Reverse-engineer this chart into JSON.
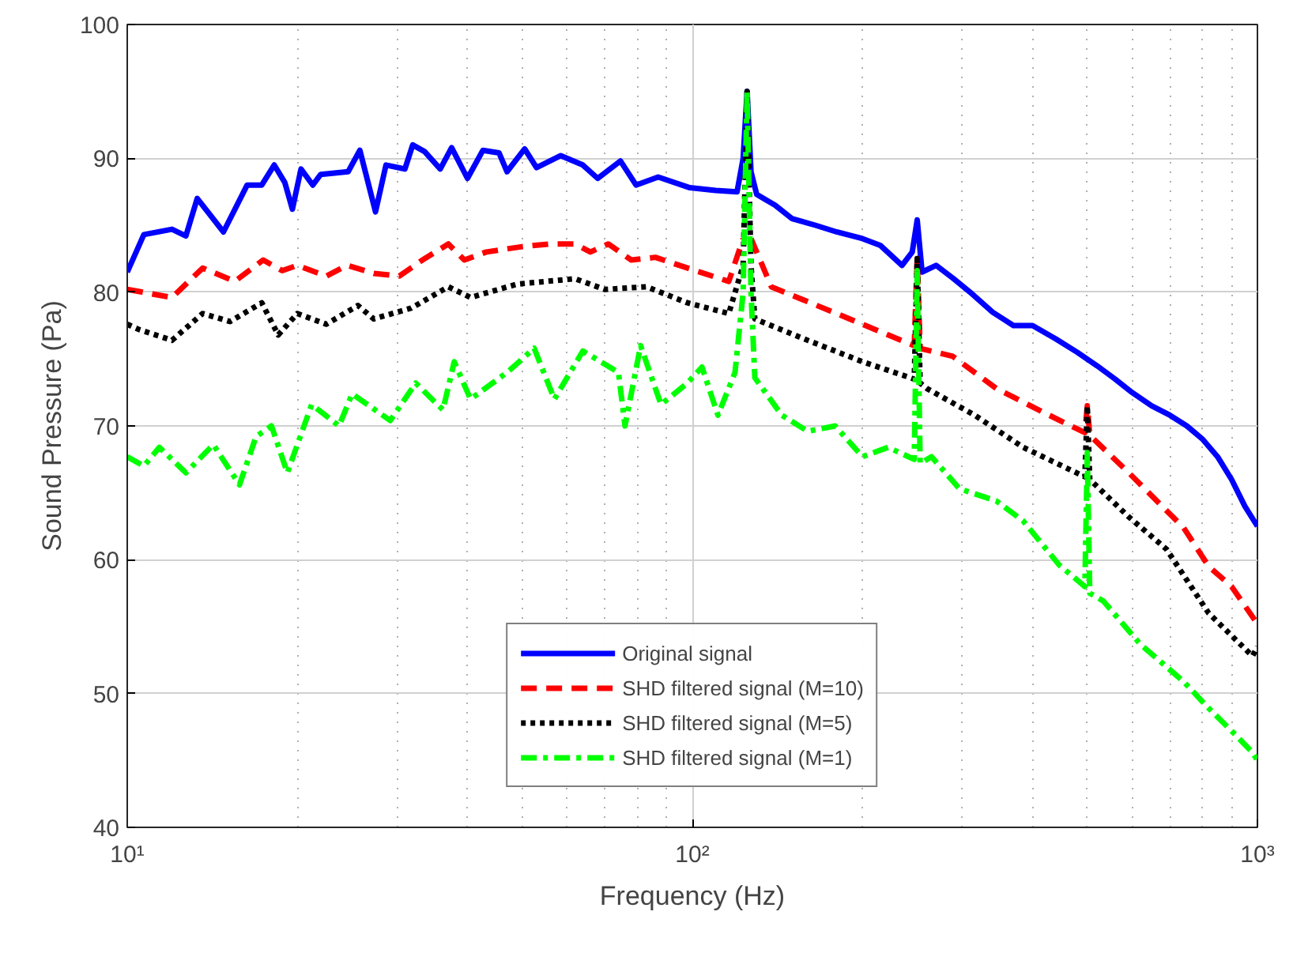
{
  "chart_data": {
    "type": "line",
    "xlabel": "Frequency (Hz)",
    "ylabel": "Sound Pressure (Pa)",
    "log": "x",
    "xlim": [
      10,
      1000
    ],
    "xticks": [
      {
        "value": 10,
        "label": "10¹"
      },
      {
        "value": 100,
        "label": "10²"
      },
      {
        "value": 1000,
        "label": "10³"
      }
    ],
    "ylim": [
      40,
      100
    ],
    "yticks": [
      40,
      50,
      60,
      70,
      80,
      90,
      100
    ],
    "grid": true,
    "legend": "bottom",
    "series": [
      {
        "name": "Original signal",
        "color": "#0000ff",
        "line_style": "solid",
        "x": [
          10,
          10.7,
          12,
          12.7,
          13.3,
          14.8,
          16.3,
          17.3,
          18.2,
          19,
          19.6,
          20.3,
          21.3,
          22,
          24.6,
          25.8,
          27.5,
          28.7,
          31,
          32,
          33.6,
          35.8,
          37.5,
          40,
          42.6,
          45.5,
          47,
          50.5,
          53,
          58.5,
          64,
          68,
          74.6,
          79.5,
          87,
          99,
          110,
          120,
          123,
          125,
          127,
          130,
          140,
          150,
          165,
          180,
          200,
          215,
          235,
          245,
          250,
          255,
          270,
          290,
          310,
          340,
          370,
          400,
          440,
          480,
          520,
          560,
          600,
          650,
          700,
          750,
          800,
          850,
          900,
          950,
          1000
        ],
        "values": [
          81.5,
          84.3,
          84.7,
          84.2,
          87,
          84.5,
          88,
          88,
          89.5,
          88.2,
          86.2,
          89.2,
          88,
          88.8,
          89,
          90.6,
          86,
          89.5,
          89.2,
          91,
          90.5,
          89.2,
          90.8,
          88.5,
          90.6,
          90.4,
          89,
          90.7,
          89.3,
          90.2,
          89.5,
          88.5,
          89.8,
          88,
          88.6,
          87.8,
          87.6,
          87.5,
          90,
          95,
          89,
          87.3,
          86.5,
          85.5,
          85,
          84.5,
          84,
          83.5,
          82,
          83,
          85.4,
          81.5,
          82,
          81,
          80,
          78.5,
          77.5,
          77.5,
          76.5,
          75.5,
          74.5,
          73.5,
          72.5,
          71.5,
          70.8,
          70,
          69,
          67.7,
          66,
          64,
          62.5
        ]
      },
      {
        "name": "SHD filtered signal (M=10)",
        "color": "#ff0000",
        "line_style": "dashed",
        "x": [
          10,
          12,
          13.6,
          15.5,
          17.4,
          18.8,
          20,
          22.5,
          24.5,
          27.3,
          30.3,
          33.3,
          37,
          39.5,
          43.2,
          50,
          56,
          62,
          66,
          71,
          78,
          86,
          98,
          116,
          123,
          125,
          127,
          138,
          180,
          222,
          247,
          250,
          253,
          289,
          345,
          428,
          495,
          500,
          505,
          592,
          740,
          820,
          900,
          1000
        ],
        "values": [
          80.2,
          79.6,
          81.8,
          80.8,
          82.4,
          81.6,
          82,
          81.2,
          82,
          81.4,
          81.2,
          82.4,
          83.6,
          82.4,
          83,
          83.4,
          83.6,
          83.6,
          83,
          83.6,
          82.4,
          82.6,
          81.8,
          80.8,
          84,
          null,
          84,
          80.4,
          78.4,
          76.8,
          76,
          82.5,
          75.8,
          75.2,
          72.8,
          70.8,
          69.5,
          71.5,
          69.3,
          66.5,
          62.4,
          59.5,
          58,
          55.2
        ]
      },
      {
        "name": "SHD filtered signal (M=5)",
        "color": "#000000",
        "line_style": "dotted",
        "x": [
          10,
          10.5,
          12,
          13.6,
          15.2,
          17.3,
          18.5,
          20,
          22.5,
          25.6,
          27.3,
          31.8,
          37,
          40.5,
          49,
          62,
          70,
          83,
          98,
          116,
          123,
          125,
          127,
          129,
          160,
          200,
          247,
          250,
          253,
          260,
          316,
          385,
          495,
          500,
          505,
          592,
          690,
          820,
          980,
          1000
        ],
        "values": [
          77.6,
          77.2,
          76.4,
          78.4,
          77.8,
          79.2,
          76.8,
          78.4,
          77.6,
          79,
          78,
          78.8,
          80.4,
          79.6,
          80.6,
          81,
          80.2,
          80.4,
          79.2,
          78.4,
          82,
          95,
          82,
          78,
          76.4,
          74.8,
          73.5,
          82.5,
          73.2,
          72.8,
          70.8,
          68.4,
          66.2,
          71.5,
          66,
          63.2,
          60.8,
          56,
          52.8,
          53.5
        ]
      },
      {
        "name": "SHD filtered signal (M=1)",
        "color": "#00ff00",
        "line_style": "dashdot",
        "x": [
          10,
          10.7,
          11.4,
          12.7,
          14.2,
          15.8,
          16.9,
          18,
          19.2,
          21.2,
          23.7,
          25,
          29.2,
          32.4,
          36.2,
          37.9,
          40.5,
          47,
          52.5,
          57,
          64,
          74,
          76,
          81,
          88,
          98,
          104,
          111,
          119,
          123,
          125,
          127,
          129,
          144,
          160,
          179,
          200,
          222,
          247,
          250,
          253,
          265,
          297,
          345,
          385,
          446,
          495,
          500,
          505,
          534,
          620,
          740,
          820,
          920,
          980,
          1000
        ],
        "values": [
          67.7,
          67,
          68.4,
          66.5,
          68.6,
          65.6,
          69.2,
          70,
          66.5,
          71.6,
          70,
          72.4,
          70.4,
          73.2,
          71.2,
          74.8,
          72,
          74,
          75.8,
          72,
          75.6,
          74,
          70,
          76,
          71.6,
          73.2,
          74.4,
          70.8,
          74,
          80,
          95,
          80,
          73.6,
          70.8,
          69.6,
          70,
          67.7,
          68.4,
          67.5,
          81.6,
          67.2,
          67.7,
          65.3,
          64.4,
          62.9,
          59.6,
          58,
          68,
          57.5,
          56.9,
          53.7,
          50.9,
          48.9,
          46.8,
          45.6,
          45
        ]
      }
    ]
  }
}
